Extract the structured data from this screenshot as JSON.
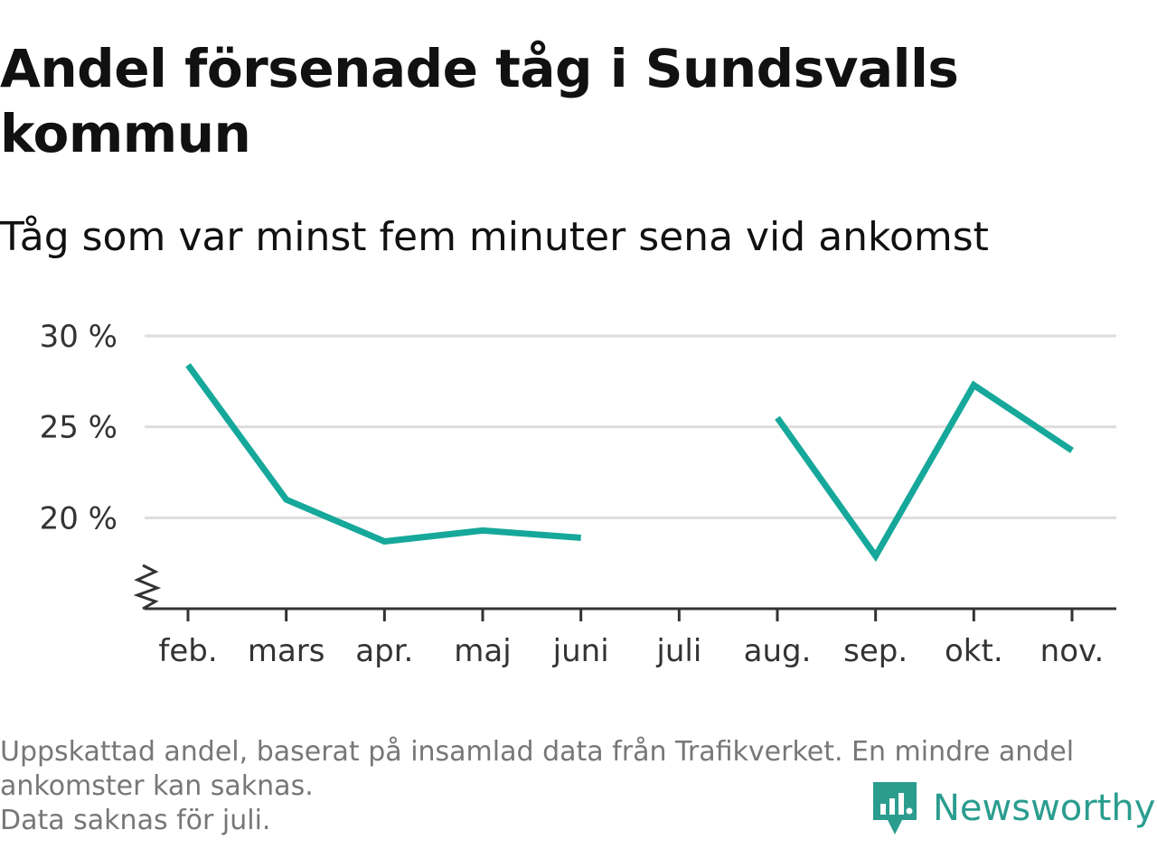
{
  "title": "Andel försenade tåg i Sundsvalls kommun",
  "subtitle": "Tåg som var minst fem minuter sena vid ankomst",
  "chart_data": {
    "type": "line",
    "categories": [
      "feb.",
      "mars",
      "apr.",
      "maj",
      "juni",
      "juli",
      "aug.",
      "sep.",
      "okt.",
      "nov."
    ],
    "series": [
      {
        "values": [
          28.4,
          21.0,
          18.7,
          19.3,
          18.9,
          null,
          25.5,
          17.9,
          27.3,
          23.7
        ]
      }
    ],
    "y_ticks": [
      20,
      25,
      30
    ],
    "y_tick_labels": [
      "20 %",
      "25 %",
      "30 %"
    ],
    "ylim": [
      15,
      30
    ],
    "y_axis_break": true,
    "grid": "horizontal",
    "line_color": "#16a89a"
  },
  "footnote": {
    "lines": [
      "Uppskattad andel, baserat på insamlad data från Trafikverket. En mindre andel",
      "ankomster kan saknas.",
      "Data saknas för juli."
    ]
  },
  "brand": {
    "name": "Newsworthy",
    "icon": "newsworthy-logo-icon",
    "color": "#2a9d8f"
  }
}
